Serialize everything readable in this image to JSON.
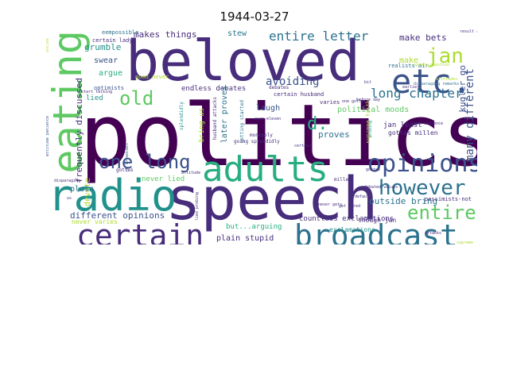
{
  "title": "1944-03-27",
  "palette": {
    "dark_purple": "#440154",
    "purple": "#472d7b",
    "indigo": "#3b528b",
    "blue": "#2c728e",
    "teal": "#21918c",
    "green": "#28ae80",
    "light_green": "#5ec962",
    "lime": "#addc30",
    "yellow": "#fde725"
  },
  "words": [
    {
      "text": "politics",
      "color": "#440154"
    },
    {
      "text": "speech",
      "color": "#472d7b"
    },
    {
      "text": "beloved",
      "color": "#472d7b"
    },
    {
      "text": "eating",
      "color": "#5ec962"
    },
    {
      "text": "radio",
      "color": "#21918c"
    },
    {
      "text": "adults",
      "color": "#28ae80"
    },
    {
      "text": "broadcast",
      "color": "#2c728e"
    },
    {
      "text": "certain",
      "color": "#472d7b"
    },
    {
      "text": "etc.",
      "color": "#3b528b"
    },
    {
      "text": "opinions",
      "color": "#3b528b"
    },
    {
      "text": "however",
      "color": "#2c728e"
    },
    {
      "text": "one long",
      "color": "#3b528b"
    },
    {
      "text": "entire",
      "color": "#5ec962"
    },
    {
      "text": "old",
      "color": "#5ec962"
    },
    {
      "text": "jan",
      "color": "#addc30"
    },
    {
      "text": "d.",
      "color": "#28ae80"
    },
    {
      "text": "entire letter",
      "color": "#2c728e"
    },
    {
      "text": "long chapter",
      "color": "#2c728e"
    },
    {
      "text": "many different",
      "color": "#3b528b"
    },
    {
      "text": "avoiding",
      "color": "#3b528b"
    },
    {
      "text": "make bets",
      "color": "#472d7b"
    },
    {
      "text": "makes things",
      "color": "#472d7b"
    },
    {
      "text": "grumble",
      "color": "#21918c"
    },
    {
      "text": "stew",
      "color": "#2c728e"
    },
    {
      "text": "swear",
      "color": "#3b528b"
    },
    {
      "text": "argue",
      "color": "#28ae80"
    },
    {
      "text": "make",
      "color": "#addc30"
    },
    {
      "text": "kugler go",
      "color": "#3b528b"
    },
    {
      "text": "frequently discussed",
      "color": "#472d7b"
    },
    {
      "text": "devote",
      "color": "#addc30"
    },
    {
      "text": "different opinions",
      "color": "#3b528b"
    },
    {
      "text": "outside bring",
      "color": "#2c728e"
    },
    {
      "text": "plain stupid",
      "color": "#472d7b"
    },
    {
      "text": "countless exclamations",
      "color": "#472d7b"
    },
    {
      "text": "endless debates",
      "color": "#472d7b"
    },
    {
      "text": "later proves",
      "color": "#2c728e"
    },
    {
      "text": "political moods",
      "color": "#5ec962"
    },
    {
      "text": "jan least",
      "color": "#472d7b"
    },
    {
      "text": "gottes millen",
      "color": "#472d7b"
    },
    {
      "text": "never lied",
      "color": "#5ec962"
    },
    {
      "text": "laugh",
      "color": "#3b528b"
    },
    {
      "text": "proves",
      "color": "#2c728e"
    },
    {
      "text": "lied",
      "color": "#21918c"
    },
    {
      "text": "plain",
      "color": "#2c728e"
    },
    {
      "text": "but...arguing",
      "color": "#28ae80"
    },
    {
      "text": "exclamations",
      "color": "#21918c"
    },
    {
      "text": "never varies",
      "color": "#addc30"
    },
    {
      "text": "bring us",
      "color": "#addc30"
    },
    {
      "text": "though jan",
      "color": "#472d7b"
    },
    {
      "text": "certain lady",
      "color": "#472d7b"
    },
    {
      "text": "eempossible",
      "color": "#2c728e"
    },
    {
      "text": "optimists",
      "color": "#3b528b"
    },
    {
      "text": "realists-air",
      "color": "#2c728e"
    },
    {
      "text": "pessimists-not",
      "color": "#472d7b"
    },
    {
      "text": "debates",
      "color": "#472d7b"
    },
    {
      "text": "varies",
      "color": "#472d7b"
    },
    {
      "text": "supreme faith",
      "color": "#addc30"
    },
    {
      "text": "certain husband",
      "color": "#472d7b"
    },
    {
      "text": "husband attacks",
      "color": "#472d7b"
    },
    {
      "text": "getting started",
      "color": "#2c728e"
    },
    {
      "text": "going splendidly",
      "color": "#472d7b"
    },
    {
      "text": "monopoly",
      "color": "#472d7b"
    },
    {
      "text": "splendidly",
      "color": "#21918c"
    },
    {
      "text": "millen",
      "color": "#472d7b"
    },
    {
      "text": "gottes",
      "color": "#472d7b"
    },
    {
      "text": "good never",
      "color": "#addc30"
    },
    {
      "text": "disparaging remarks",
      "color": "#2c728e"
    },
    {
      "text": "start talking",
      "color": "#472d7b"
    },
    {
      "text": "attitude patience",
      "color": "#3b528b"
    },
    {
      "text": "disparaging",
      "color": "#472d7b"
    },
    {
      "text": "best evidence",
      "color": "#472d7b"
    },
    {
      "text": "bit",
      "color": "#472d7b"
    },
    {
      "text": "supreme",
      "color": "#addc30"
    },
    {
      "text": "attacks",
      "color": "#472d7b"
    },
    {
      "text": "probing",
      "color": "#21918c"
    },
    {
      "text": "lied probing",
      "color": "#472d7b"
    },
    {
      "text": "get tired",
      "color": "#472d7b"
    },
    {
      "text": "default",
      "color": "#472d7b"
    },
    {
      "text": "even eleven",
      "color": "#472d7b"
    },
    {
      "text": "attitude",
      "color": "#472d7b"
    },
    {
      "text": "gottes",
      "color": "#472d7b"
    },
    {
      "text": "never gets",
      "color": "#472d7b"
    },
    {
      "text": "debated values",
      "color": "#472d7b"
    },
    {
      "text": "no broadcast",
      "color": "#3b528b"
    },
    {
      "text": "us",
      "color": "#472d7b"
    },
    {
      "text": "certain",
      "color": "#472d7b"
    },
    {
      "text": "result anyone",
      "color": "#472d7b"
    },
    {
      "text": "simple question",
      "color": "#addc30"
    },
    {
      "text": "attitudes",
      "color": "#addc30"
    },
    {
      "text": "uncles",
      "color": "#addc30"
    },
    {
      "text": "earlier",
      "color": "#472d7b"
    },
    {
      "text": "before day",
      "color": "#472d7b"
    },
    {
      "text": "one gottes",
      "color": "#472d7b"
    }
  ]
}
